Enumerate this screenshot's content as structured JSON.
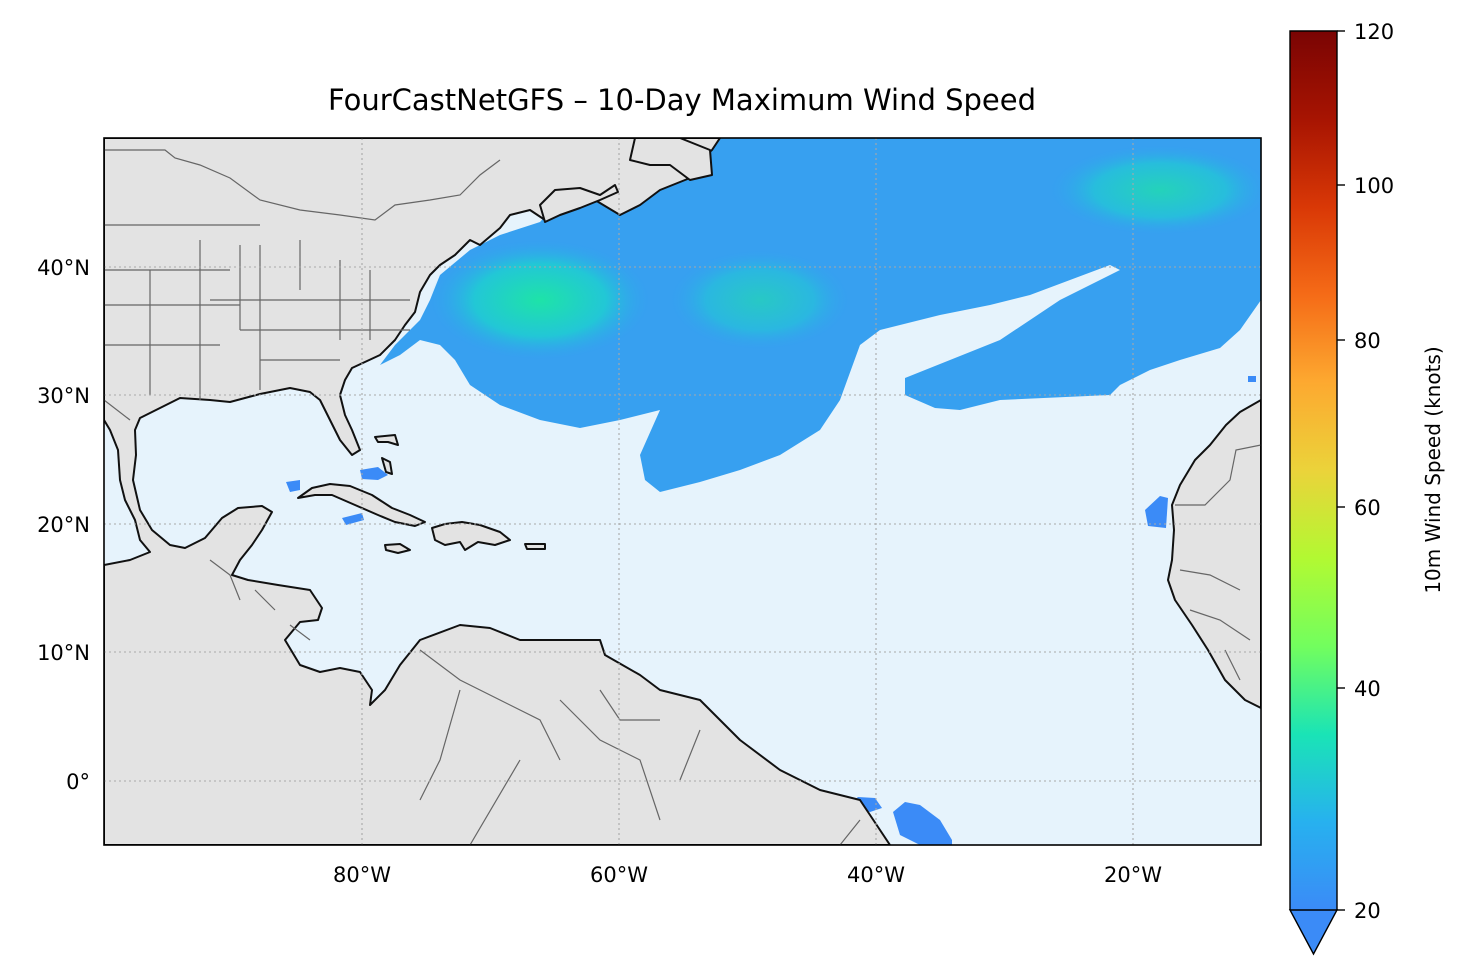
{
  "title": "FourCastNetGFS – 10-Day Maximum Wind Speed",
  "map": {
    "extent_lon": [
      -100,
      -10
    ],
    "extent_lat": [
      -5,
      50
    ],
    "ocean_color": "#e6f3fc",
    "land_color": "#e3e3e3",
    "coast_color": "#111111",
    "border_color": "#666666",
    "gridline_style": "dotted",
    "lon_ticks": [
      {
        "value": -80,
        "label": "80°W"
      },
      {
        "value": -60,
        "label": "60°W"
      },
      {
        "value": -40,
        "label": "40°W"
      },
      {
        "value": -20,
        "label": "20°W"
      }
    ],
    "lat_ticks": [
      {
        "value": 40,
        "label": "40°N"
      },
      {
        "value": 30,
        "label": "30°N"
      },
      {
        "value": 20,
        "label": "20°N"
      },
      {
        "value": 10,
        "label": "10°N"
      },
      {
        "value": 0,
        "label": "0°"
      }
    ]
  },
  "colorbar": {
    "label": "10m Wind Speed (knots)",
    "min": 20,
    "max": 120,
    "extend": "min",
    "colormap": "turbo",
    "ticks": [
      {
        "value": 120,
        "label": "120"
      },
      {
        "value": 100,
        "label": "100"
      },
      {
        "value": 80,
        "label": "80"
      },
      {
        "value": 60,
        "label": "60"
      },
      {
        "value": 40,
        "label": "40"
      },
      {
        "value": 20,
        "label": "20"
      }
    ]
  }
}
